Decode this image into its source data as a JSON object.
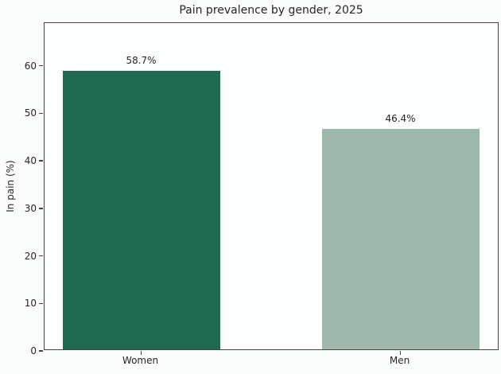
{
  "title": "Pain prevalence by gender, 2025",
  "chart_data": {
    "type": "bar",
    "title": "Pain prevalence by gender, 2025",
    "categories": [
      "Women",
      "Men"
    ],
    "values": [
      58.7,
      46.4
    ],
    "bar_labels": [
      "58.7%",
      "46.4%"
    ],
    "bar_colors": [
      "#1f6a51",
      "#9fb8ac"
    ],
    "xlabel": "",
    "ylabel": "In pain (%)",
    "ylim": [
      0,
      69
    ],
    "yticks": [
      0,
      10,
      20,
      30,
      40,
      50,
      60
    ],
    "grid": false,
    "legend": null,
    "background_color": "#fafbfb",
    "text_color": "#262626",
    "spine_color": "#454545"
  }
}
